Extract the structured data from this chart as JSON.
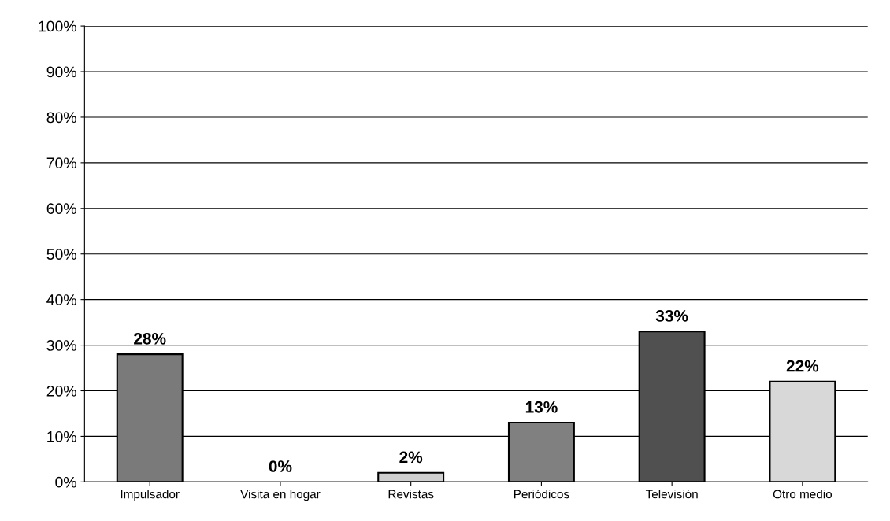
{
  "chart_data": {
    "type": "bar",
    "categories": [
      "Impulsador",
      "Visita en hogar",
      "Revistas",
      "Periódicos",
      "Televisión",
      "Otro medio"
    ],
    "values": [
      28,
      0,
      2,
      13,
      33,
      22
    ],
    "value_labels": [
      "28%",
      "0%",
      "2%",
      "13%",
      "33%",
      "22%"
    ],
    "colors": [
      "#7a7a7a",
      "#ffffff",
      "#d0d0d0",
      "#808080",
      "#505050",
      "#d8d8d8"
    ],
    "ylim": [
      0,
      100
    ],
    "yticks": [
      {
        "value": 0,
        "label": "0%"
      },
      {
        "value": 10,
        "label": "10%"
      },
      {
        "value": 20,
        "label": "20%"
      },
      {
        "value": 30,
        "label": "30%"
      },
      {
        "value": 40,
        "label": "40%"
      },
      {
        "value": 50,
        "label": "50%"
      },
      {
        "value": 60,
        "label": "60%"
      },
      {
        "value": 70,
        "label": "70%"
      },
      {
        "value": 80,
        "label": "80%"
      },
      {
        "value": 90,
        "label": "90%"
      },
      {
        "value": 100,
        "label": "100%"
      }
    ],
    "grid": "y",
    "legend": false
  }
}
